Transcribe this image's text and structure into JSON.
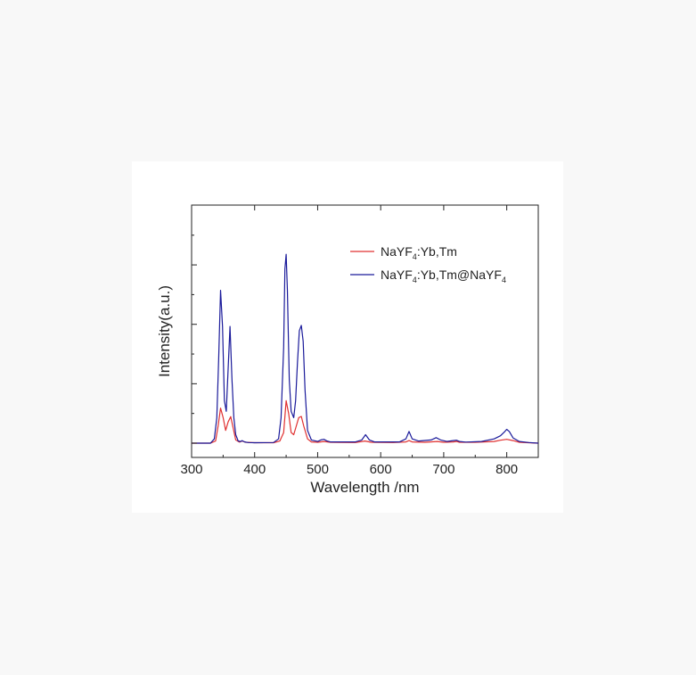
{
  "chart_data": {
    "type": "line",
    "xlabel": "Wavelength /nm",
    "ylabel": "Intensity(a.u.)",
    "xlim": [
      300,
      850
    ],
    "ylim": [
      0,
      1.0
    ],
    "x_ticks": [
      "300",
      "400",
      "500",
      "600",
      "700",
      "800"
    ],
    "y_ticks_labeled": false,
    "grid": false,
    "legend_position": "top-right",
    "series": [
      {
        "name": "NaYF4:Yb,Tm",
        "legend_parts": {
          "prefix": "NaYF",
          "sub1": "4",
          "mid": ":Yb,Tm",
          "sub2": "",
          "suffix": ""
        },
        "color": "#e03030",
        "x": [
          300,
          330,
          338,
          342,
          346,
          350,
          354,
          358,
          362,
          366,
          370,
          376,
          380,
          386,
          400,
          430,
          440,
          446,
          450,
          454,
          458,
          462,
          466,
          470,
          474,
          478,
          484,
          490,
          500,
          510,
          520,
          560,
          575,
          585,
          620,
          640,
          645,
          650,
          670,
          690,
          700,
          715,
          720,
          725,
          750,
          780,
          790,
          800,
          810,
          820,
          850
        ],
        "y": [
          0.0,
          0.0,
          0.01,
          0.08,
          0.165,
          0.12,
          0.06,
          0.1,
          0.125,
          0.07,
          0.015,
          0.005,
          0.01,
          0.004,
          0.002,
          0.002,
          0.01,
          0.05,
          0.2,
          0.14,
          0.05,
          0.04,
          0.08,
          0.12,
          0.126,
          0.08,
          0.02,
          0.006,
          0.004,
          0.008,
          0.004,
          0.003,
          0.01,
          0.004,
          0.003,
          0.006,
          0.012,
          0.006,
          0.004,
          0.008,
          0.004,
          0.006,
          0.008,
          0.004,
          0.004,
          0.008,
          0.014,
          0.018,
          0.012,
          0.004,
          0.0
        ]
      },
      {
        "name": "NaYF4:Yb,Tm@NaYF4",
        "legend_parts": {
          "prefix": "NaYF",
          "sub1": "4",
          "mid": ":Yb,Tm@NaYF",
          "sub2": "4",
          "suffix": ""
        },
        "color": "#1a1a9a",
        "x": [
          300,
          330,
          336,
          340,
          343,
          346,
          349,
          352,
          355,
          358,
          361,
          364,
          367,
          370,
          374,
          378,
          380,
          384,
          390,
          400,
          430,
          438,
          442,
          446,
          448,
          450,
          452,
          455,
          458,
          462,
          465,
          468,
          471,
          474,
          477,
          480,
          484,
          490,
          500,
          505,
          510,
          515,
          520,
          560,
          570,
          576,
          582,
          590,
          630,
          640,
          645,
          650,
          660,
          680,
          688,
          695,
          705,
          715,
          720,
          725,
          735,
          760,
          780,
          790,
          797,
          800,
          804,
          810,
          820,
          835,
          850
        ],
        "y": [
          0.0,
          0.0,
          0.02,
          0.12,
          0.4,
          0.72,
          0.55,
          0.2,
          0.15,
          0.35,
          0.55,
          0.3,
          0.12,
          0.04,
          0.01,
          0.008,
          0.012,
          0.006,
          0.003,
          0.002,
          0.003,
          0.02,
          0.12,
          0.45,
          0.82,
          0.89,
          0.72,
          0.3,
          0.15,
          0.12,
          0.2,
          0.38,
          0.53,
          0.555,
          0.48,
          0.25,
          0.06,
          0.015,
          0.008,
          0.015,
          0.018,
          0.01,
          0.006,
          0.006,
          0.015,
          0.04,
          0.015,
          0.006,
          0.006,
          0.02,
          0.055,
          0.02,
          0.01,
          0.015,
          0.026,
          0.015,
          0.008,
          0.012,
          0.014,
          0.008,
          0.005,
          0.008,
          0.02,
          0.035,
          0.055,
          0.065,
          0.055,
          0.025,
          0.008,
          0.003,
          0.0
        ]
      }
    ]
  }
}
